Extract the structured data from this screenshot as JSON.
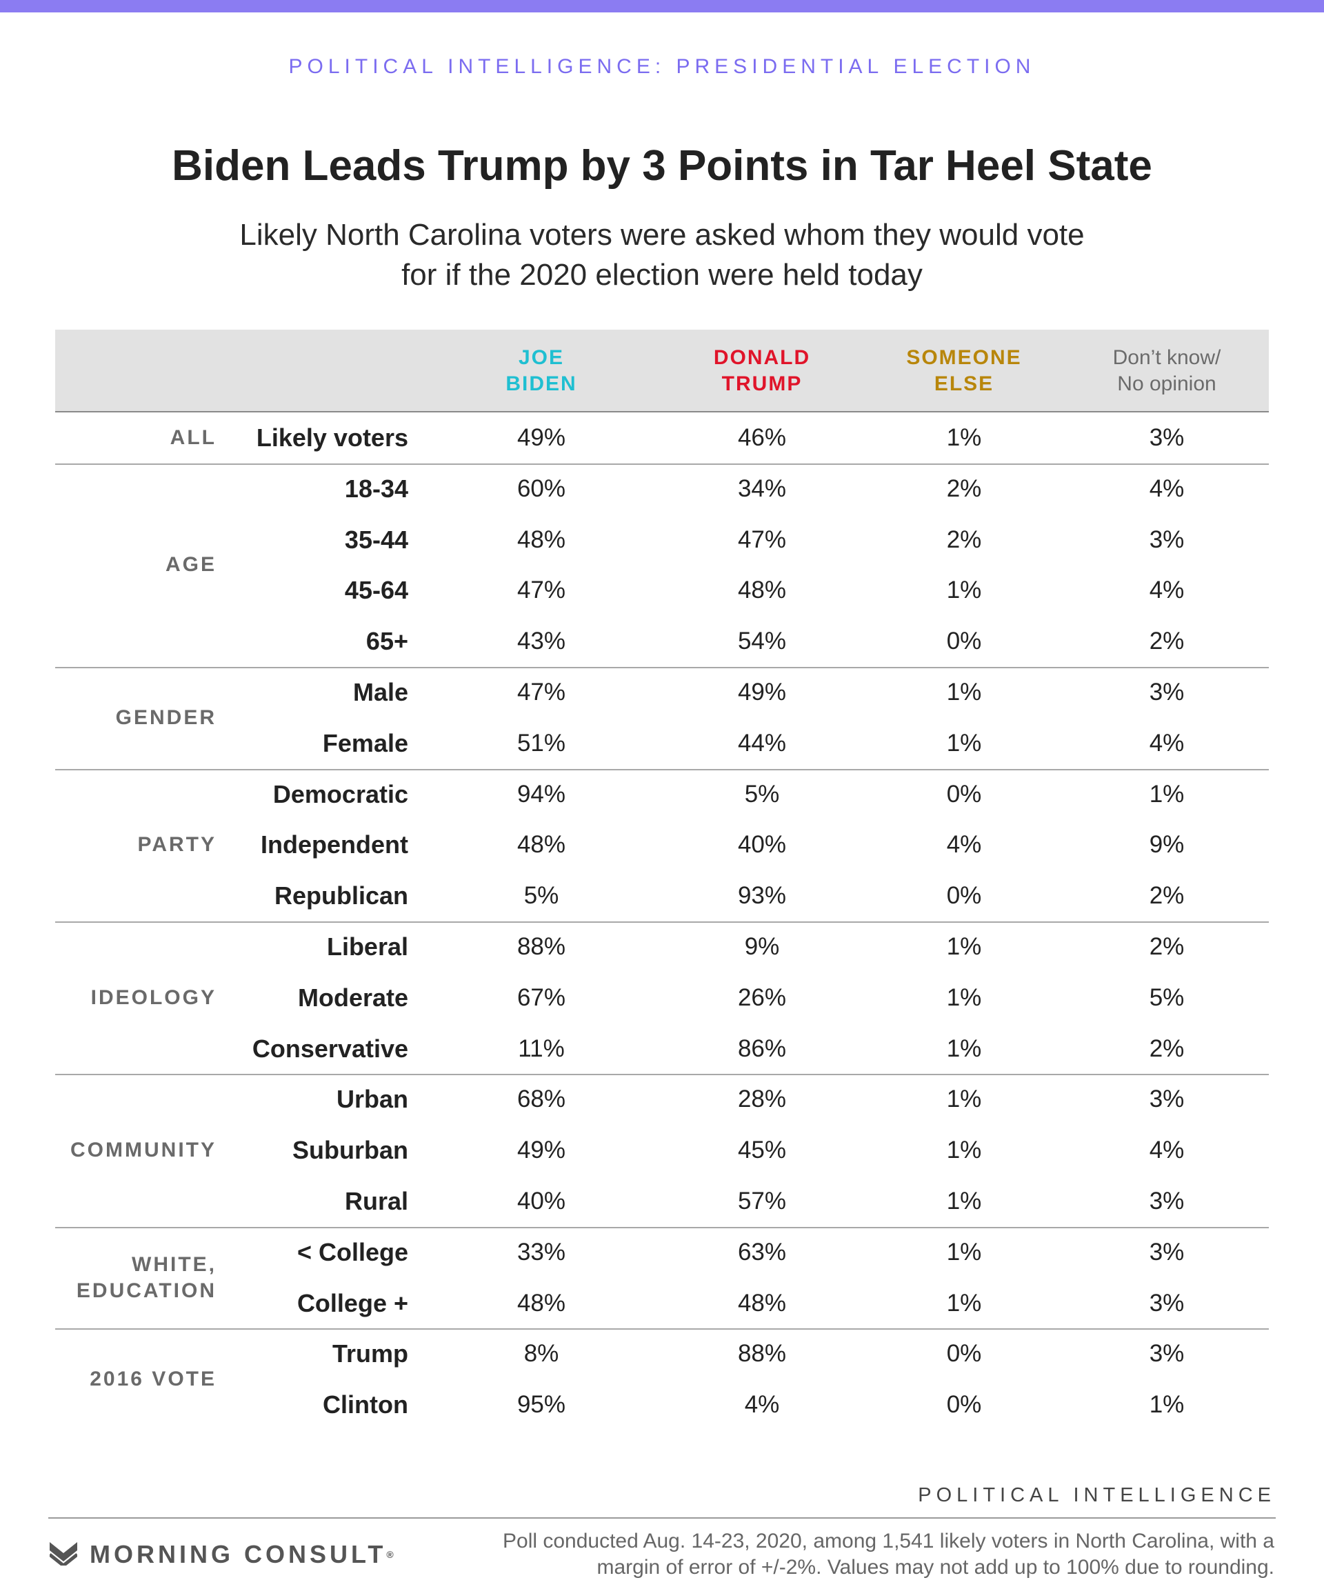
{
  "header": {
    "kicker": "POLITICAL INTELLIGENCE: PRESIDENTIAL ELECTION",
    "title": "Biden Leads Trump by 3 Points in Tar Heel State",
    "subtitle": "Likely North Carolina voters were asked whom they would vote for if the 2020 election were held today"
  },
  "columns": [
    {
      "label": "JOE\nBIDEN",
      "color": "#1fbfd1"
    },
    {
      "label": "DONALD\nTRUMP",
      "color": "#e0142a"
    },
    {
      "label": "SOMEONE\nELSE",
      "color": "#b8860b"
    },
    {
      "label": "Don’t know/\nNo opinion",
      "color": "#6b6b6b"
    }
  ],
  "groups": [
    {
      "label": "ALL",
      "rows": [
        {
          "label": "Likely voters",
          "values": [
            "49%",
            "46%",
            "1%",
            "3%"
          ]
        }
      ]
    },
    {
      "label": "AGE",
      "rows": [
        {
          "label": "18-34",
          "values": [
            "60%",
            "34%",
            "2%",
            "4%"
          ]
        },
        {
          "label": "35-44",
          "values": [
            "48%",
            "47%",
            "2%",
            "3%"
          ]
        },
        {
          "label": "45-64",
          "values": [
            "47%",
            "48%",
            "1%",
            "4%"
          ]
        },
        {
          "label": "65+",
          "values": [
            "43%",
            "54%",
            "0%",
            "2%"
          ]
        }
      ]
    },
    {
      "label": "GENDER",
      "rows": [
        {
          "label": "Male",
          "values": [
            "47%",
            "49%",
            "1%",
            "3%"
          ]
        },
        {
          "label": "Female",
          "values": [
            "51%",
            "44%",
            "1%",
            "4%"
          ]
        }
      ]
    },
    {
      "label": "PARTY",
      "rows": [
        {
          "label": "Democratic",
          "values": [
            "94%",
            "5%",
            "0%",
            "1%"
          ]
        },
        {
          "label": "Independent",
          "values": [
            "48%",
            "40%",
            "4%",
            "9%"
          ]
        },
        {
          "label": "Republican",
          "values": [
            "5%",
            "93%",
            "0%",
            "2%"
          ]
        }
      ]
    },
    {
      "label": "IDEOLOGY",
      "rows": [
        {
          "label": "Liberal",
          "values": [
            "88%",
            "9%",
            "1%",
            "2%"
          ]
        },
        {
          "label": "Moderate",
          "values": [
            "67%",
            "26%",
            "1%",
            "5%"
          ]
        },
        {
          "label": "Conservative",
          "values": [
            "11%",
            "86%",
            "1%",
            "2%"
          ]
        }
      ]
    },
    {
      "label": "COMMUNITY",
      "rows": [
        {
          "label": "Urban",
          "values": [
            "68%",
            "28%",
            "1%",
            "3%"
          ]
        },
        {
          "label": "Suburban",
          "values": [
            "49%",
            "45%",
            "1%",
            "4%"
          ]
        },
        {
          "label": "Rural",
          "values": [
            "40%",
            "57%",
            "1%",
            "3%"
          ]
        }
      ]
    },
    {
      "label": "WHITE,\nEDUCATION",
      "rows": [
        {
          "label": "< College",
          "values": [
            "33%",
            "63%",
            "1%",
            "3%"
          ]
        },
        {
          "label": "College +",
          "values": [
            "48%",
            "48%",
            "1%",
            "3%"
          ]
        }
      ]
    },
    {
      "label": "2016 VOTE",
      "rows": [
        {
          "label": "Trump",
          "values": [
            "8%",
            "88%",
            "0%",
            "3%"
          ]
        },
        {
          "label": "Clinton",
          "values": [
            "95%",
            "4%",
            "0%",
            "1%"
          ]
        }
      ]
    }
  ],
  "footer": {
    "source_tag": "POLITICAL INTELLIGENCE",
    "brand": "MORNING CONSULT",
    "brand_mark": "®",
    "note": "Poll conducted Aug. 14-23, 2020, among 1,541 likely voters in North Carolina, with a margin of error of +/-2%. Values may not add up to 100% due to rounding."
  },
  "chart_data": {
    "type": "table",
    "title": "Biden Leads Trump by 3 Points in Tar Heel State",
    "subtitle": "Likely North Carolina voters were asked whom they would vote for if the 2020 election were held today",
    "columns": [
      "JOE BIDEN",
      "DONALD TRUMP",
      "SOMEONE ELSE",
      "Don’t know/ No opinion"
    ],
    "rows": [
      {
        "group": "ALL",
        "label": "Likely voters",
        "values": [
          49,
          46,
          1,
          3
        ]
      },
      {
        "group": "AGE",
        "label": "18-34",
        "values": [
          60,
          34,
          2,
          4
        ]
      },
      {
        "group": "AGE",
        "label": "35-44",
        "values": [
          48,
          47,
          2,
          3
        ]
      },
      {
        "group": "AGE",
        "label": "45-64",
        "values": [
          47,
          48,
          1,
          4
        ]
      },
      {
        "group": "AGE",
        "label": "65+",
        "values": [
          43,
          54,
          0,
          2
        ]
      },
      {
        "group": "GENDER",
        "label": "Male",
        "values": [
          47,
          49,
          1,
          3
        ]
      },
      {
        "group": "GENDER",
        "label": "Female",
        "values": [
          51,
          44,
          1,
          4
        ]
      },
      {
        "group": "PARTY",
        "label": "Democratic",
        "values": [
          94,
          5,
          0,
          1
        ]
      },
      {
        "group": "PARTY",
        "label": "Independent",
        "values": [
          48,
          40,
          4,
          9
        ]
      },
      {
        "group": "PARTY",
        "label": "Republican",
        "values": [
          5,
          93,
          0,
          2
        ]
      },
      {
        "group": "IDEOLOGY",
        "label": "Liberal",
        "values": [
          88,
          9,
          1,
          2
        ]
      },
      {
        "group": "IDEOLOGY",
        "label": "Moderate",
        "values": [
          67,
          26,
          1,
          5
        ]
      },
      {
        "group": "IDEOLOGY",
        "label": "Conservative",
        "values": [
          11,
          86,
          1,
          2
        ]
      },
      {
        "group": "COMMUNITY",
        "label": "Urban",
        "values": [
          68,
          28,
          1,
          3
        ]
      },
      {
        "group": "COMMUNITY",
        "label": "Suburban",
        "values": [
          49,
          45,
          1,
          4
        ]
      },
      {
        "group": "COMMUNITY",
        "label": "Rural",
        "values": [
          40,
          57,
          1,
          3
        ]
      },
      {
        "group": "WHITE, EDUCATION",
        "label": "< College",
        "values": [
          33,
          63,
          1,
          3
        ]
      },
      {
        "group": "WHITE, EDUCATION",
        "label": "College +",
        "values": [
          48,
          48,
          1,
          3
        ]
      },
      {
        "group": "2016 VOTE",
        "label": "Trump",
        "values": [
          8,
          88,
          0,
          3
        ]
      },
      {
        "group": "2016 VOTE",
        "label": "Clinton",
        "values": [
          95,
          4,
          0,
          1
        ]
      }
    ],
    "unit": "%"
  }
}
